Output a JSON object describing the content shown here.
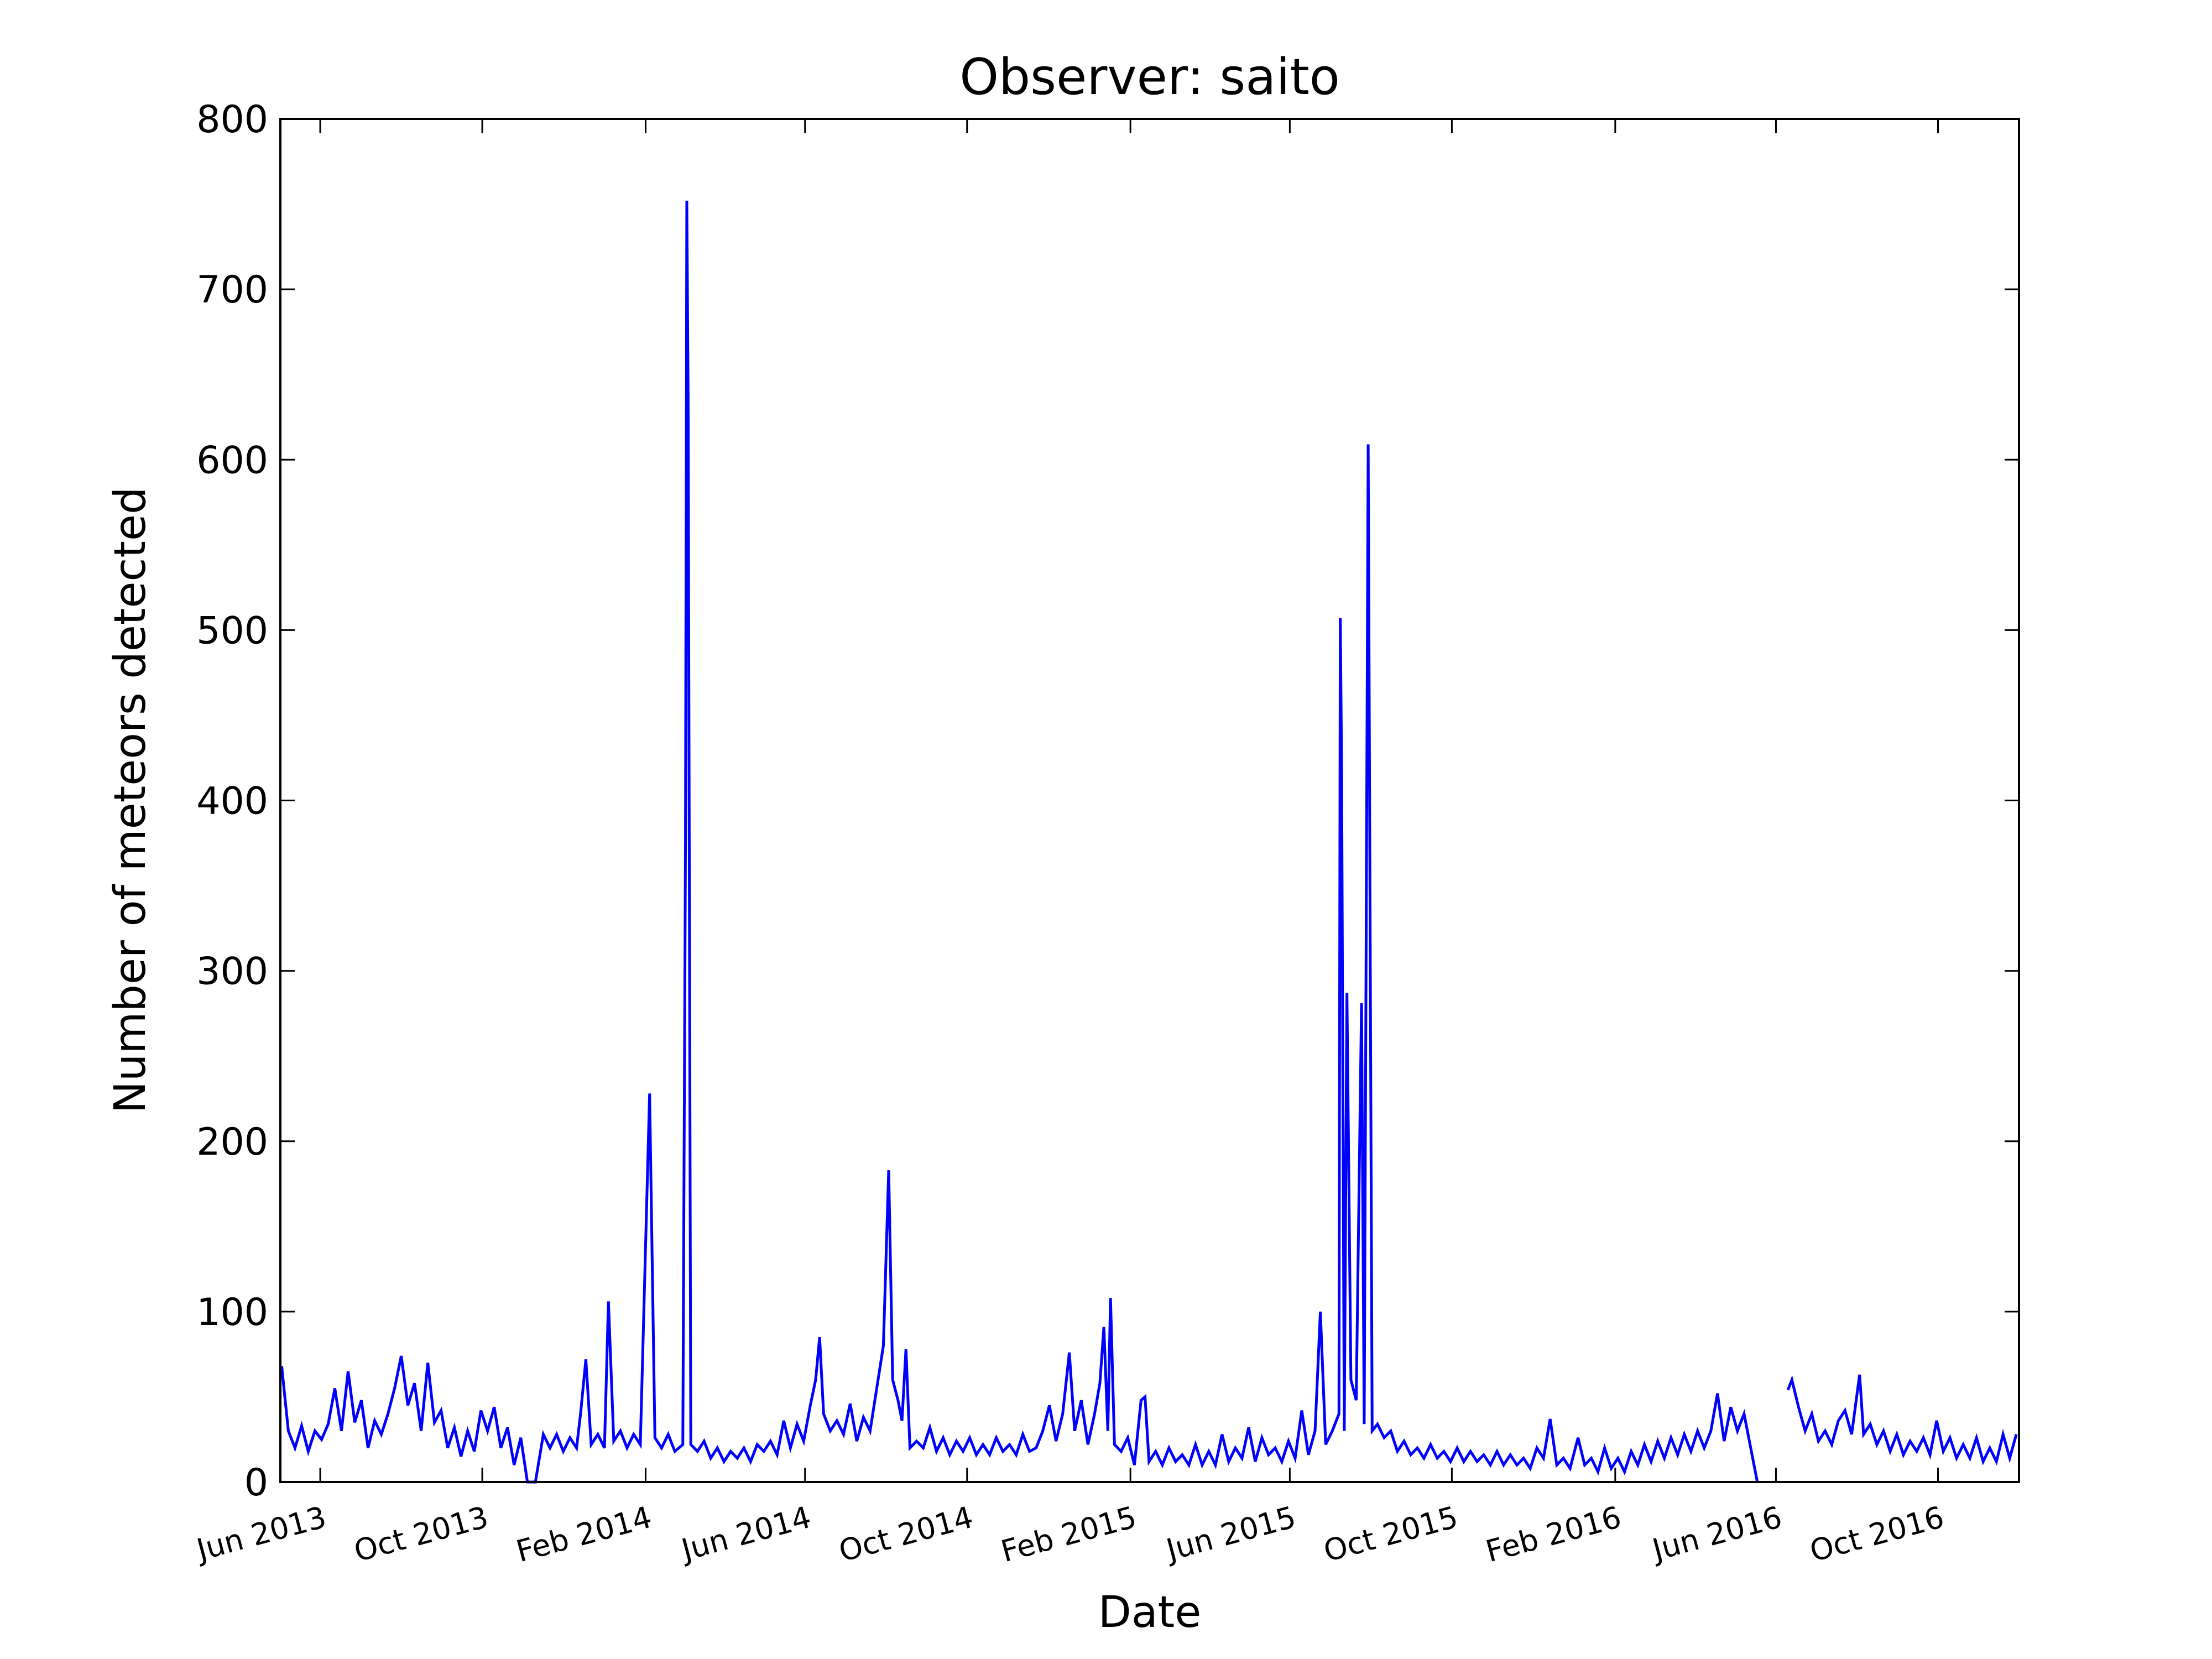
{
  "chart_data": {
    "type": "line",
    "title": "Observer: saito",
    "xlabel": "Date",
    "ylabel": "Number of meteors detected",
    "xlim": [
      "2013-05-02",
      "2016-12-01"
    ],
    "ylim": [
      0,
      800
    ],
    "yticks": [
      0,
      100,
      200,
      300,
      400,
      500,
      600,
      700,
      800
    ],
    "xticks": [
      {
        "value": "2013-06-01",
        "label": "Jun 2013"
      },
      {
        "value": "2013-10-01",
        "label": "Oct 2013"
      },
      {
        "value": "2014-02-01",
        "label": "Feb 2014"
      },
      {
        "value": "2014-06-01",
        "label": "Jun 2014"
      },
      {
        "value": "2014-10-01",
        "label": "Oct 2014"
      },
      {
        "value": "2015-02-01",
        "label": "Feb 2015"
      },
      {
        "value": "2015-06-01",
        "label": "Jun 2015"
      },
      {
        "value": "2015-10-01",
        "label": "Oct 2015"
      },
      {
        "value": "2016-02-01",
        "label": "Feb 2016"
      },
      {
        "value": "2016-06-01",
        "label": "Jun 2016"
      },
      {
        "value": "2016-10-01",
        "label": "Oct 2016"
      }
    ],
    "x": [
      "2013-05-03",
      "2013-05-08",
      "2013-05-13",
      "2013-05-18",
      "2013-05-23",
      "2013-05-28",
      "2013-06-02",
      "2013-06-07",
      "2013-06-12",
      "2013-06-17",
      "2013-06-22",
      "2013-06-27",
      "2013-07-02",
      "2013-07-07",
      "2013-07-12",
      "2013-07-17",
      "2013-07-22",
      "2013-07-27",
      "2013-08-01",
      "2013-08-06",
      "2013-08-11",
      "2013-08-16",
      "2013-08-21",
      "2013-08-26",
      "2013-08-31",
      "2013-09-05",
      "2013-09-10",
      "2013-09-15",
      "2013-09-20",
      "2013-09-25",
      "2013-09-30",
      "2013-10-05",
      "2013-10-10",
      "2013-10-15",
      "2013-10-20",
      "2013-10-25",
      "2013-10-30",
      "2013-11-04",
      "2013-11-10",
      "2013-11-16",
      "2013-11-21",
      "2013-11-26",
      "2013-12-01",
      "2013-12-06",
      "2013-12-11",
      "2013-12-14",
      "2013-12-18",
      "2013-12-22",
      "2013-12-27",
      "2014-01-01",
      "2014-01-04",
      "2014-01-08",
      "2014-01-13",
      "2014-01-18",
      "2014-01-23",
      "2014-01-28",
      "2014-02-04",
      "2014-02-08",
      "2014-02-13",
      "2014-02-18",
      "2014-02-23",
      "2014-03-01",
      "2014-03-03",
      "2014-03-04",
      "2014-03-05",
      "2014-03-07",
      "2014-03-12",
      "2014-03-17",
      "2014-03-22",
      "2014-03-27",
      "2014-04-01",
      "2014-04-06",
      "2014-04-11",
      "2014-04-16",
      "2014-04-21",
      "2014-04-26",
      "2014-05-01",
      "2014-05-06",
      "2014-05-11",
      "2014-05-16",
      "2014-05-21",
      "2014-05-26",
      "2014-05-31",
      "2014-06-05",
      "2014-06-09",
      "2014-06-12",
      "2014-06-15",
      "2014-06-20",
      "2014-06-25",
      "2014-06-30",
      "2014-07-05",
      "2014-07-10",
      "2014-07-15",
      "2014-07-20",
      "2014-07-25",
      "2014-07-30",
      "2014-08-03",
      "2014-08-06",
      "2014-08-10",
      "2014-08-13",
      "2014-08-16",
      "2014-08-19",
      "2014-08-24",
      "2014-08-29",
      "2014-09-03",
      "2014-09-08",
      "2014-09-13",
      "2014-09-18",
      "2014-09-23",
      "2014-09-28",
      "2014-10-03",
      "2014-10-08",
      "2014-10-13",
      "2014-10-18",
      "2014-10-23",
      "2014-10-28",
      "2014-11-02",
      "2014-11-07",
      "2014-11-12",
      "2014-11-17",
      "2014-11-22",
      "2014-11-27",
      "2014-12-02",
      "2014-12-07",
      "2014-12-12",
      "2014-12-17",
      "2014-12-21",
      "2014-12-26",
      "2014-12-31",
      "2015-01-05",
      "2015-01-09",
      "2015-01-12",
      "2015-01-15",
      "2015-01-17",
      "2015-01-20",
      "2015-01-25",
      "2015-01-30",
      "2015-02-04",
      "2015-02-09",
      "2015-02-12",
      "2015-02-15",
      "2015-02-20",
      "2015-02-25",
      "2015-03-02",
      "2015-03-07",
      "2015-03-12",
      "2015-03-17",
      "2015-03-22",
      "2015-03-27",
      "2015-04-01",
      "2015-04-06",
      "2015-04-11",
      "2015-04-16",
      "2015-04-21",
      "2015-04-26",
      "2015-05-01",
      "2015-05-06",
      "2015-05-11",
      "2015-05-16",
      "2015-05-21",
      "2015-05-26",
      "2015-05-31",
      "2015-06-05",
      "2015-06-10",
      "2015-06-15",
      "2015-06-20",
      "2015-06-24",
      "2015-06-28",
      "2015-07-03",
      "2015-07-08",
      "2015-07-09",
      "2015-07-10",
      "2015-07-12",
      "2015-07-14",
      "2015-07-17",
      "2015-07-21",
      "2015-07-25",
      "2015-07-27",
      "2015-07-30",
      "2015-08-02",
      "2015-08-06",
      "2015-08-11",
      "2015-08-16",
      "2015-08-21",
      "2015-08-26",
      "2015-08-31",
      "2015-09-05",
      "2015-09-10",
      "2015-09-15",
      "2015-09-20",
      "2015-09-25",
      "2015-09-30",
      "2015-10-05",
      "2015-10-10",
      "2015-10-15",
      "2015-10-20",
      "2015-10-25",
      "2015-10-30",
      "2015-11-04",
      "2015-11-09",
      "2015-11-14",
      "2015-11-19",
      "2015-11-24",
      "2015-11-29",
      "2015-12-04",
      "2015-12-09",
      "2015-12-14",
      "2015-12-19",
      "2015-12-24",
      "2015-12-29",
      "2016-01-04",
      "2016-01-09",
      "2016-01-14",
      "2016-01-19",
      "2016-01-24",
      "2016-01-29",
      "2016-02-03",
      "2016-02-08",
      "2016-02-13",
      "2016-02-18",
      "2016-02-23",
      "2016-02-28",
      "2016-03-04",
      "2016-03-09",
      "2016-03-14",
      "2016-03-19",
      "2016-03-24",
      "2016-03-29",
      "2016-04-03",
      "2016-04-08",
      "2016-04-13",
      "2016-04-18",
      "2016-04-23",
      "2016-04-28",
      "2016-05-03",
      "2016-05-08",
      "2016-05-13",
      "2016-05-18",
      "2016-05-28",
      "2016-06-10",
      "2016-06-13",
      "2016-06-18",
      "2016-06-23",
      "2016-06-28",
      "2016-07-03",
      "2016-07-08",
      "2016-07-13",
      "2016-07-18",
      "2016-07-23",
      "2016-07-28",
      "2016-08-03",
      "2016-08-06",
      "2016-08-11",
      "2016-08-16",
      "2016-08-21",
      "2016-08-26",
      "2016-08-31",
      "2016-09-05",
      "2016-09-10",
      "2016-09-15",
      "2016-09-20",
      "2016-09-25",
      "2016-09-30",
      "2016-10-05",
      "2016-10-10",
      "2016-10-15",
      "2016-10-20",
      "2016-10-25",
      "2016-10-30",
      "2016-11-04",
      "2016-11-09",
      "2016-11-14",
      "2016-11-19",
      "2016-11-24",
      "2016-11-29"
    ],
    "series": [
      {
        "color": "#0000ff",
        "values": [
          68,
          30,
          20,
          33,
          18,
          30,
          25,
          34,
          55,
          30,
          65,
          35,
          48,
          20,
          36,
          28,
          40,
          55,
          74,
          45,
          58,
          30,
          70,
          35,
          42,
          20,
          32,
          15,
          30,
          18,
          42,
          30,
          44,
          20,
          32,
          10,
          26,
          0,
          0,
          28,
          20,
          28,
          18,
          26,
          20,
          40,
          72,
          22,
          28,
          20,
          106,
          24,
          30,
          20,
          28,
          22,
          228,
          26,
          20,
          28,
          18,
          22,
          375,
          752,
          635,
          22,
          18,
          24,
          14,
          20,
          12,
          18,
          14,
          20,
          12,
          22,
          18,
          24,
          16,
          36,
          20,
          34,
          24,
          45,
          60,
          85,
          40,
          30,
          36,
          28,
          46,
          24,
          38,
          30,
          55,
          80,
          183,
          60,
          48,
          36,
          78,
          20,
          24,
          20,
          32,
          18,
          26,
          16,
          24,
          18,
          26,
          16,
          22,
          16,
          26,
          18,
          22,
          16,
          28,
          18,
          20,
          30,
          45,
          24,
          40,
          76,
          30,
          48,
          22,
          40,
          58,
          91,
          30,
          108,
          22,
          18,
          26,
          10,
          48,
          50,
          12,
          18,
          10,
          20,
          12,
          16,
          10,
          22,
          10,
          18,
          10,
          28,
          12,
          20,
          14,
          32,
          12,
          26,
          16,
          20,
          12,
          24,
          14,
          42,
          16,
          30,
          100,
          22,
          30,
          40,
          507,
          420,
          30,
          287,
          60,
          48,
          281,
          34,
          609,
          30,
          34,
          26,
          30,
          18,
          24,
          16,
          20,
          14,
          22,
          14,
          18,
          12,
          20,
          12,
          18,
          12,
          16,
          10,
          18,
          10,
          16,
          10,
          14,
          8,
          20,
          14,
          37,
          10,
          14,
          8,
          26,
          10,
          14,
          6,
          20,
          8,
          14,
          6,
          18,
          10,
          22,
          12,
          24,
          14,
          26,
          16,
          28,
          18,
          30,
          20,
          30,
          52,
          24,
          44,
          30,
          40,
          20,
          0,
          null,
          54,
          60,
          44,
          30,
          40,
          24,
          30,
          22,
          36,
          42,
          28,
          63,
          28,
          34,
          22,
          30,
          18,
          28,
          16,
          24,
          18,
          26,
          16,
          36,
          18,
          26,
          14,
          22,
          14,
          26,
          12,
          20,
          12,
          28,
          14,
          28
        ]
      }
    ]
  }
}
